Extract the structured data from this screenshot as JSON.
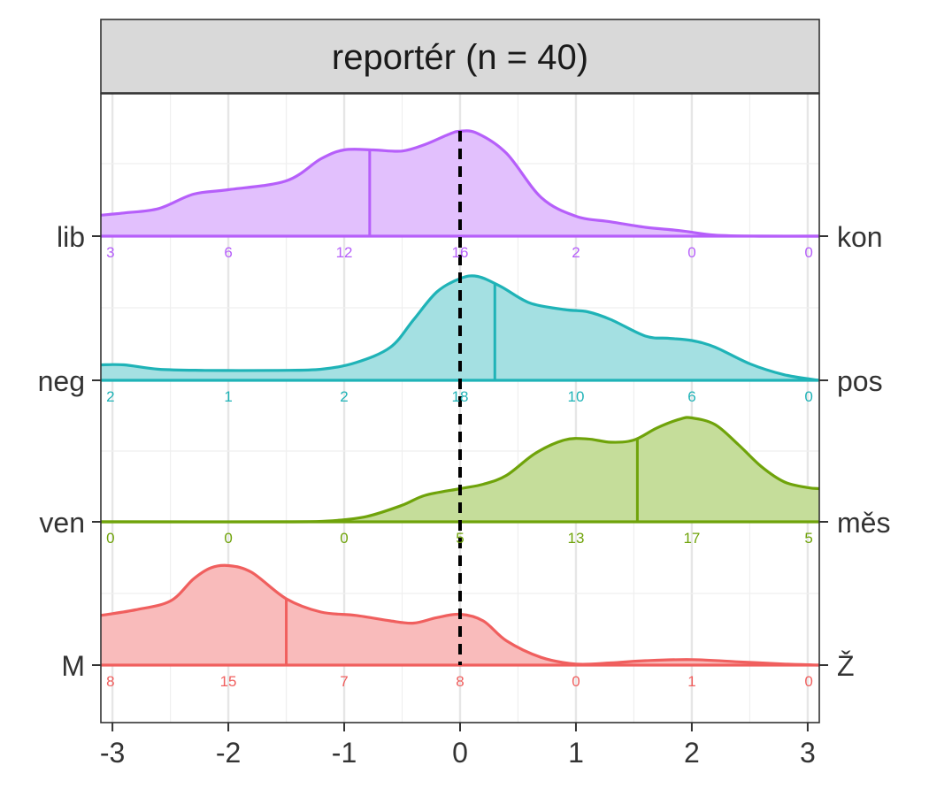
{
  "chart_data": {
    "type": "ridgeline-density",
    "facet_title": "reportér (n = 40)",
    "x_ticks": [
      -3,
      -2,
      -1,
      0,
      1,
      2,
      3
    ],
    "x_tick_labels": [
      "-3",
      "-2",
      "-1",
      "0",
      "1",
      "2",
      "3"
    ],
    "xlim": [
      -3.1,
      3.1
    ],
    "reference_line_x": 0,
    "grid": true,
    "count_positions": [
      -3,
      -2,
      -1,
      0,
      1,
      2,
      3
    ],
    "series": [
      {
        "left_label": "lib",
        "right_label": "kon",
        "color": "#B65FFA",
        "fill": "#E2C0FD",
        "mean": -0.78,
        "counts": [
          "3",
          "6",
          "12",
          "16",
          "2",
          "0",
          "0"
        ],
        "density": [
          [
            -3.1,
            0.19
          ],
          [
            -2.9,
            0.21
          ],
          [
            -2.6,
            0.25
          ],
          [
            -2.3,
            0.38
          ],
          [
            -2.0,
            0.42
          ],
          [
            -1.5,
            0.5
          ],
          [
            -1.2,
            0.7
          ],
          [
            -1.0,
            0.78
          ],
          [
            -0.75,
            0.78
          ],
          [
            -0.5,
            0.77
          ],
          [
            -0.3,
            0.83
          ],
          [
            -0.1,
            0.92
          ],
          [
            0.0,
            0.95
          ],
          [
            0.15,
            0.93
          ],
          [
            0.4,
            0.75
          ],
          [
            0.7,
            0.35
          ],
          [
            1.0,
            0.18
          ],
          [
            1.3,
            0.13
          ],
          [
            1.6,
            0.08
          ],
          [
            1.9,
            0.05
          ],
          [
            2.2,
            0.01
          ],
          [
            2.6,
            0.0
          ],
          [
            3.1,
            0.0
          ]
        ]
      },
      {
        "left_label": "neg",
        "right_label": "pos",
        "color": "#1FB3B7",
        "fill": "#A4E0E2",
        "mean": 0.3,
        "counts": [
          "2",
          "1",
          "2",
          "18",
          "10",
          "6",
          "0"
        ],
        "density": [
          [
            -3.1,
            0.14
          ],
          [
            -2.9,
            0.14
          ],
          [
            -2.6,
            0.1
          ],
          [
            -2.2,
            0.09
          ],
          [
            -1.6,
            0.09
          ],
          [
            -1.2,
            0.1
          ],
          [
            -0.9,
            0.16
          ],
          [
            -0.6,
            0.3
          ],
          [
            -0.4,
            0.55
          ],
          [
            -0.2,
            0.8
          ],
          [
            0.0,
            0.92
          ],
          [
            0.15,
            0.94
          ],
          [
            0.35,
            0.85
          ],
          [
            0.6,
            0.7
          ],
          [
            0.9,
            0.64
          ],
          [
            1.1,
            0.62
          ],
          [
            1.3,
            0.55
          ],
          [
            1.6,
            0.4
          ],
          [
            1.8,
            0.38
          ],
          [
            2.0,
            0.36
          ],
          [
            2.2,
            0.3
          ],
          [
            2.5,
            0.15
          ],
          [
            2.8,
            0.05
          ],
          [
            3.1,
            0.0
          ]
        ]
      },
      {
        "left_label": "ven",
        "right_label": "měs",
        "color": "#6FA30A",
        "fill": "#C5DD9A",
        "mean": 1.53,
        "counts": [
          "0",
          "0",
          "0",
          "5",
          "13",
          "17",
          "5"
        ],
        "density": [
          [
            -3.1,
            0.0
          ],
          [
            -1.5,
            0.0
          ],
          [
            -1.1,
            0.01
          ],
          [
            -0.8,
            0.05
          ],
          [
            -0.5,
            0.15
          ],
          [
            -0.3,
            0.24
          ],
          [
            0.0,
            0.3
          ],
          [
            0.2,
            0.34
          ],
          [
            0.4,
            0.42
          ],
          [
            0.65,
            0.62
          ],
          [
            0.9,
            0.74
          ],
          [
            1.1,
            0.75
          ],
          [
            1.3,
            0.72
          ],
          [
            1.5,
            0.74
          ],
          [
            1.7,
            0.85
          ],
          [
            1.9,
            0.93
          ],
          [
            2.0,
            0.94
          ],
          [
            2.2,
            0.88
          ],
          [
            2.4,
            0.7
          ],
          [
            2.6,
            0.5
          ],
          [
            2.8,
            0.36
          ],
          [
            3.0,
            0.31
          ],
          [
            3.1,
            0.3
          ]
        ]
      },
      {
        "left_label": "M",
        "right_label": "Ž",
        "color": "#F05F5E",
        "fill": "#F9BBBB",
        "mean": -1.5,
        "counts": [
          "8",
          "15",
          "7",
          "8",
          "0",
          "1",
          "0"
        ],
        "density": [
          [
            -3.1,
            0.45
          ],
          [
            -2.8,
            0.5
          ],
          [
            -2.5,
            0.58
          ],
          [
            -2.3,
            0.78
          ],
          [
            -2.15,
            0.88
          ],
          [
            -2.0,
            0.9
          ],
          [
            -1.8,
            0.84
          ],
          [
            -1.5,
            0.6
          ],
          [
            -1.2,
            0.48
          ],
          [
            -0.9,
            0.45
          ],
          [
            -0.6,
            0.4
          ],
          [
            -0.4,
            0.38
          ],
          [
            -0.2,
            0.43
          ],
          [
            0.0,
            0.46
          ],
          [
            0.2,
            0.4
          ],
          [
            0.4,
            0.22
          ],
          [
            0.7,
            0.07
          ],
          [
            1.0,
            0.01
          ],
          [
            1.3,
            0.02
          ],
          [
            1.6,
            0.04
          ],
          [
            2.0,
            0.05
          ],
          [
            2.4,
            0.03
          ],
          [
            2.8,
            0.01
          ],
          [
            3.1,
            0.0
          ]
        ]
      }
    ]
  }
}
